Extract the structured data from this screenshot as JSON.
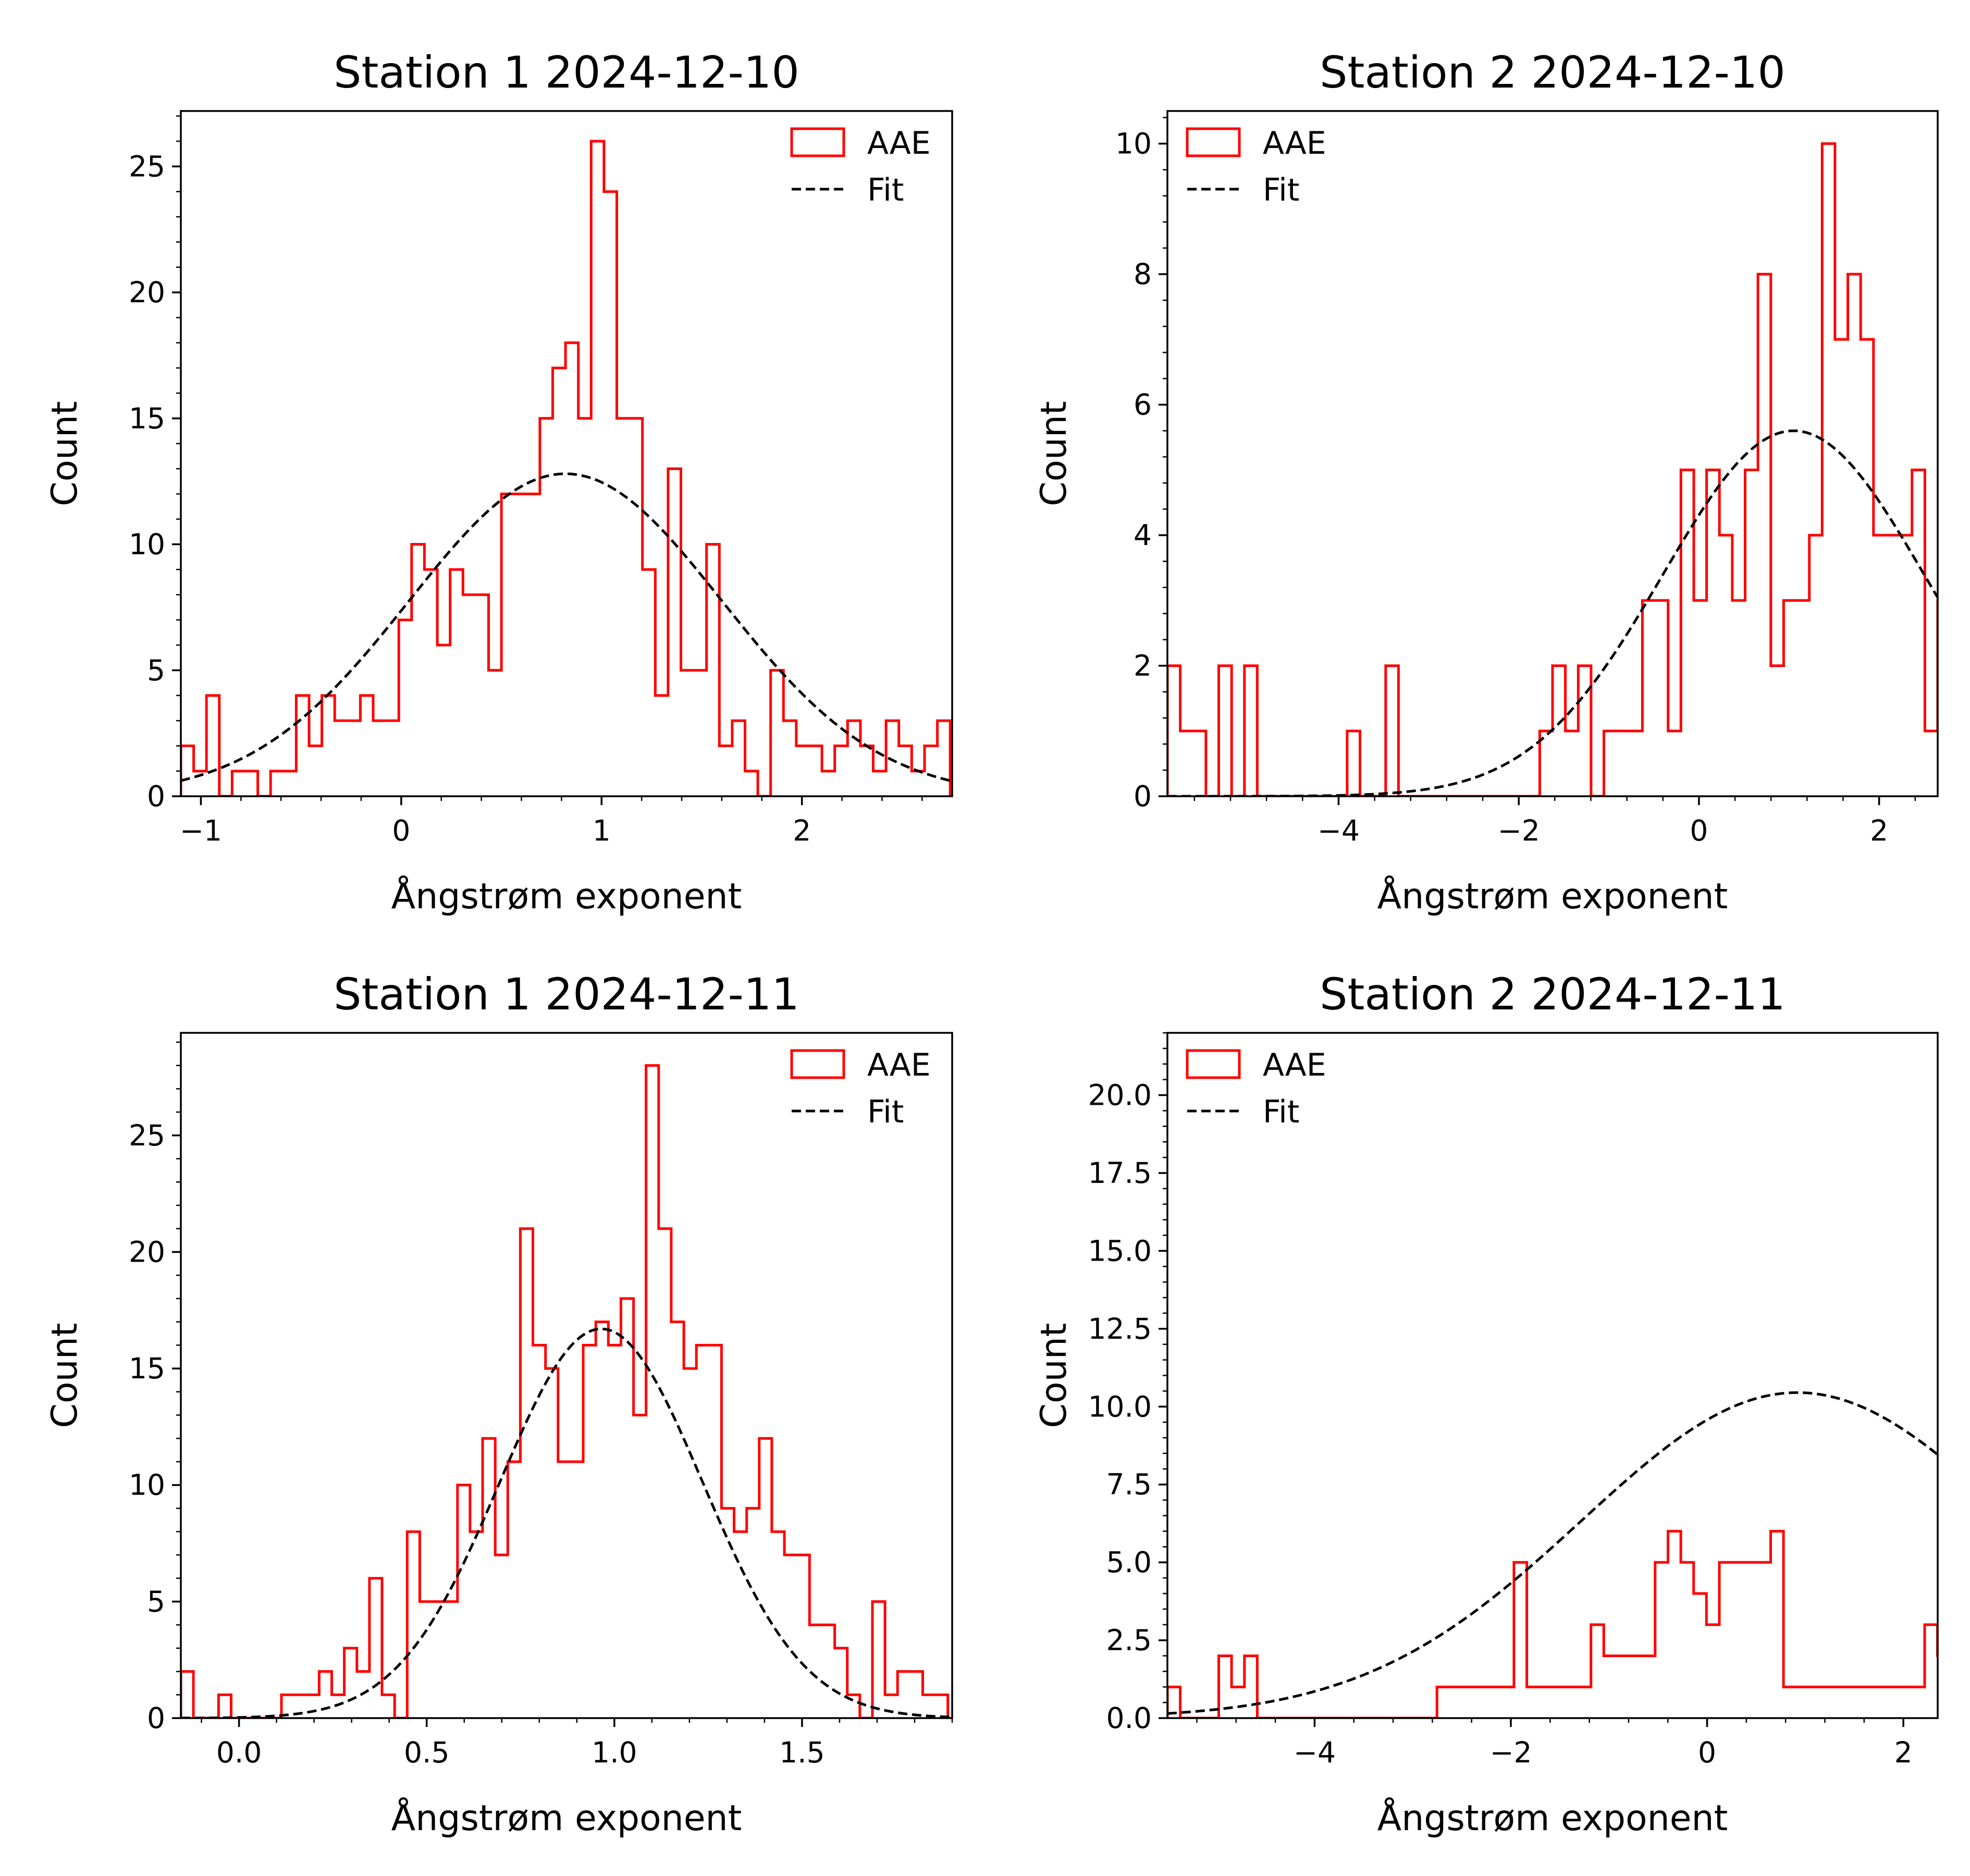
{
  "chart_data": [
    {
      "type": "histogram",
      "title": "Station 1 2024-12-10",
      "xlabel": "Ångstrøm exponent",
      "ylabel": "Count",
      "xlim": [
        -1.1,
        2.75
      ],
      "ylim": [
        0,
        27.2
      ],
      "xticks": [
        -1,
        0,
        1,
        2
      ],
      "xticklabels": [
        "−1",
        "0",
        "1",
        "2"
      ],
      "yticks": [
        0,
        5,
        10,
        15,
        20,
        25
      ],
      "yticklabels": [
        "0",
        "5",
        "10",
        "15",
        "20",
        "25"
      ],
      "legend": {
        "position": "top-right",
        "entries": [
          "AAE",
          "Fit"
        ]
      },
      "bin_start": -1.1,
      "bin_width": 0.064,
      "counts": [
        2,
        1,
        4,
        0,
        1,
        1,
        0,
        1,
        1,
        4,
        2,
        4,
        3,
        3,
        4,
        3,
        3,
        7,
        10,
        9,
        6,
        9,
        8,
        8,
        5,
        12,
        12,
        12,
        15,
        17,
        18,
        15,
        26,
        24,
        15,
        15,
        9,
        4,
        13,
        5,
        5,
        10,
        2,
        3,
        1,
        0,
        5,
        3,
        2,
        2,
        1,
        2,
        3,
        2,
        1,
        3,
        2,
        1,
        2,
        3
      ],
      "fit": {
        "type": "gaussian",
        "amplitude": 12.8,
        "mean": 0.82,
        "sigma": 0.78,
        "offset": 0.0
      }
    },
    {
      "type": "histogram",
      "title": "Station 2 2024-12-10",
      "xlabel": "Ångstrøm exponent",
      "ylabel": "Count",
      "xlim": [
        -5.9,
        2.65
      ],
      "ylim": [
        0,
        10.5
      ],
      "xticks": [
        -4,
        -2,
        0,
        2
      ],
      "xticklabels": [
        "−4",
        "−2",
        "0",
        "2"
      ],
      "yticks": [
        0,
        2,
        4,
        6,
        8,
        10
      ],
      "yticklabels": [
        "0",
        "2",
        "4",
        "6",
        "8",
        "10"
      ],
      "legend": {
        "position": "top-left",
        "entries": [
          "AAE",
          "Fit"
        ]
      },
      "bin_start": -5.9,
      "bin_width": 0.1425,
      "counts": [
        2,
        1,
        1,
        0,
        2,
        0,
        2,
        0,
        0,
        0,
        0,
        0,
        0,
        0,
        1,
        0,
        0,
        2,
        0,
        0,
        0,
        0,
        0,
        0,
        0,
        0,
        0,
        0,
        0,
        1,
        2,
        1,
        2,
        0,
        1,
        1,
        1,
        3,
        3,
        1,
        5,
        3,
        5,
        4,
        3,
        5,
        8,
        2,
        3,
        3,
        4,
        10,
        7,
        8,
        7,
        4,
        4,
        4,
        5,
        1,
        3
      ],
      "fit": {
        "type": "gaussian",
        "amplitude": 5.6,
        "mean": 1.05,
        "sigma": 1.45,
        "offset": 0.0
      }
    },
    {
      "type": "histogram",
      "title": "Station 1 2024-12-11",
      "xlabel": "Ångstrøm exponent",
      "ylabel": "Count",
      "xlim": [
        -0.155,
        1.9
      ],
      "ylim": [
        0,
        29.4
      ],
      "xticks": [
        0.0,
        0.5,
        1.0,
        1.5
      ],
      "xticklabels": [
        "0.0",
        "0.5",
        "1.0",
        "1.5"
      ],
      "yticks": [
        0,
        5,
        10,
        15,
        20,
        25
      ],
      "yticklabels": [
        "0",
        "5",
        "10",
        "15",
        "20",
        "25"
      ],
      "legend": {
        "position": "top-right",
        "entries": [
          "AAE",
          "Fit"
        ]
      },
      "bin_start": -0.155,
      "bin_width": 0.0335,
      "counts": [
        2,
        0,
        0,
        1,
        0,
        0,
        0,
        0,
        1,
        1,
        1,
        2,
        1,
        3,
        2,
        6,
        1,
        0,
        8,
        5,
        5,
        5,
        10,
        8,
        12,
        7,
        11,
        21,
        16,
        15,
        11,
        11,
        16,
        17,
        16,
        18,
        13,
        28,
        21,
        17,
        15,
        16,
        16,
        9,
        8,
        9,
        12,
        8,
        7,
        7,
        4,
        4,
        3,
        1,
        0,
        5,
        1,
        2,
        2,
        1,
        1
      ],
      "fit": {
        "type": "gaussian",
        "amplitude": 16.7,
        "mean": 0.965,
        "sigma": 0.27,
        "offset": 0.0
      }
    },
    {
      "type": "histogram",
      "title": "Station 2 2024-12-11",
      "xlabel": "Ångstrøm exponent",
      "ylabel": "Count",
      "xlim": [
        -5.5,
        2.35
      ],
      "ylim": [
        0,
        22
      ],
      "xticks": [
        -4,
        -2,
        0,
        2
      ],
      "xticklabels": [
        "−4",
        "−2",
        "0",
        "2"
      ],
      "yticks": [
        0.0,
        2.5,
        5.0,
        7.5,
        10.0,
        12.5,
        15.0,
        17.5,
        20.0
      ],
      "yticklabels": [
        "0.0",
        "2.5",
        "5.0",
        "7.5",
        "10.0",
        "12.5",
        "15.0",
        "17.5",
        "20.0"
      ],
      "legend": {
        "position": "top-left",
        "entries": [
          "AAE",
          "Fit"
        ]
      },
      "bin_start": -5.5,
      "bin_width": 0.1308,
      "counts": [
        1,
        0,
        0,
        0,
        2,
        1,
        2,
        0,
        0,
        0,
        0,
        0,
        0,
        0,
        0,
        0,
        0,
        0,
        0,
        0,
        0,
        1,
        1,
        1,
        1,
        1,
        1,
        5,
        1,
        1,
        1,
        1,
        1,
        3,
        2,
        2,
        2,
        2,
        5,
        6,
        5,
        4,
        3,
        5,
        5,
        5,
        5,
        6,
        1,
        1,
        1,
        1,
        1,
        1,
        1,
        1,
        1,
        1,
        1,
        3,
        2
      ],
      "fit": {
        "type": "gaussian",
        "amplitude": 10.45,
        "mean": 0.92,
        "sigma": 2.2,
        "offset": 0.0
      }
    }
  ],
  "colors": {
    "histogram": "#ff0000",
    "fit": "#000000"
  },
  "legend_labels": {
    "hist": "AAE",
    "fit": "Fit"
  }
}
